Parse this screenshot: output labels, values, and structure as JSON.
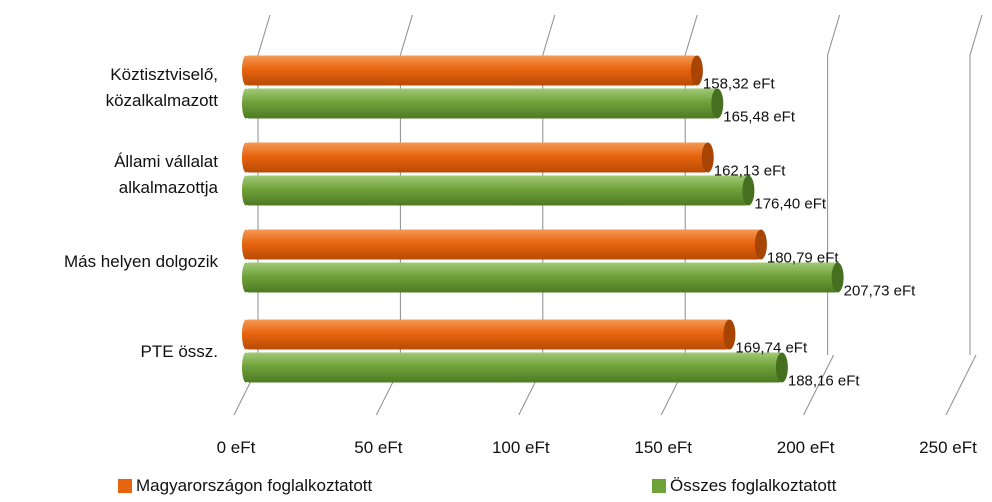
{
  "chart_data": {
    "type": "bar",
    "orientation": "horizontal",
    "style": "3d-cylinder",
    "categories": [
      "Köztisztviselő, közalkalmazott",
      "Állami vállalat alkalmazottja",
      "Más helyen dolgozik",
      "PTE össz."
    ],
    "category_label_lines": [
      [
        "Köztisztviselő,",
        "közalkalmazott"
      ],
      [
        "Állami vállalat",
        "alkalmazottja"
      ],
      [
        "Más helyen dolgozik"
      ],
      [
        "PTE össz."
      ]
    ],
    "series": [
      {
        "name": "Magyarországon foglalkoztatott",
        "color": "#E8650F",
        "values": [
          158.32,
          162.13,
          180.79,
          169.74
        ],
        "labels": [
          "158,32 eFt",
          "162,13 eFt",
          "180,79 eFt",
          "169,74 eFt"
        ]
      },
      {
        "name": "Összes foglalkoztatott",
        "color": "#70A23A",
        "values": [
          165.48,
          176.4,
          207.73,
          188.16
        ],
        "labels": [
          "165,48 eFt",
          "176,40 eFt",
          "207,73 eFt",
          "188,16 eFt"
        ]
      }
    ],
    "x_ticks": [
      0,
      50,
      100,
      150,
      200,
      250
    ],
    "x_tick_labels": [
      "0 eFt",
      "50 eFt",
      "100 eFt",
      "150 eFt",
      "200 eFt",
      "250 eFt"
    ],
    "xlim": [
      0,
      250
    ],
    "grid": true,
    "legend_position": "bottom",
    "title": "",
    "xlabel": "",
    "ylabel": ""
  }
}
